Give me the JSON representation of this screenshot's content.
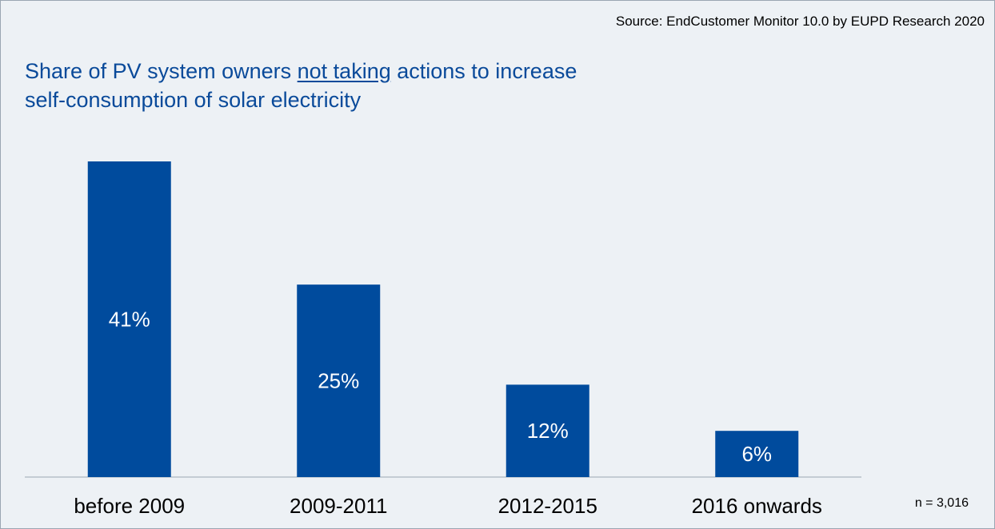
{
  "source": "Source: EndCustomer Monitor 10.0 by EUPD Research 2020",
  "title": {
    "part1": "Share of PV system owners ",
    "underlined": "not taking",
    "part2": " actions to increase",
    "line2": "self-consumption of solar electricity"
  },
  "sample_note": "n = 3,016",
  "colors": {
    "bar": "#004b9d",
    "title": "#0a4a9a",
    "background": "#edf1f5",
    "baseline": "#9aa6b2"
  },
  "chart_data": {
    "type": "bar",
    "title": "Share of PV system owners not taking actions to increase self-consumption of solar electricity",
    "categories": [
      "before 2009",
      "2009-2011",
      "2012-2015",
      "2016 onwards"
    ],
    "values": [
      41,
      25,
      12,
      6
    ],
    "value_labels": [
      "41%",
      "25%",
      "12%",
      "6%"
    ],
    "unit": "%",
    "xlabel": "",
    "ylabel": "",
    "ylim": [
      0,
      41
    ],
    "grid": false,
    "legend": "none"
  }
}
